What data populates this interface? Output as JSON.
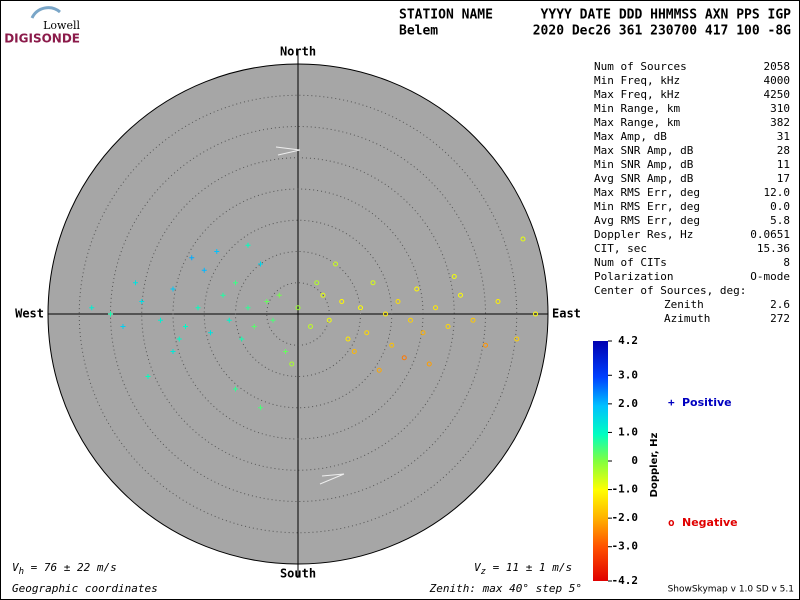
{
  "logo": {
    "top": "Lowell",
    "bottom": "DIGISONDE"
  },
  "header": {
    "labels": [
      "STATION NAME",
      "YYYY DATE  DDD HHMMSS AXN PPS IGP"
    ],
    "values": [
      "Belem",
      "2020 Dec26 361 230700 417 100 -8G"
    ]
  },
  "stats": [
    [
      "Num of Sources",
      "2058"
    ],
    [
      "Min Freq, kHz",
      "4000"
    ],
    [
      "Max Freq, kHz",
      "4250"
    ],
    [
      "Min Range, km",
      "310"
    ],
    [
      "Max Range, km",
      "382"
    ],
    [
      "Max Amp, dB",
      "31"
    ],
    [
      "Max SNR Amp, dB",
      "28"
    ],
    [
      "Min SNR Amp, dB",
      "11"
    ],
    [
      "Avg SNR Amp, dB",
      "17"
    ],
    [
      "Max RMS Err, deg",
      "12.0"
    ],
    [
      "Min RMS Err, deg",
      "0.0"
    ],
    [
      "Avg RMS Err, deg",
      "5.8"
    ],
    [
      "Doppler Res, Hz",
      "0.0651"
    ],
    [
      "CIT, sec",
      "15.36"
    ],
    [
      "Num of CITs",
      "8"
    ],
    [
      "Polarization",
      "O-mode"
    ]
  ],
  "center": {
    "label": "Center of Sources, deg:",
    "rows": [
      [
        "Zenith",
        "2.6"
      ],
      [
        "Azimuth",
        "272"
      ]
    ]
  },
  "footer": {
    "vh": {
      "symbol": "V",
      "sub": "h",
      "text": " = 76 ± 22 m/s"
    },
    "vz": {
      "symbol": "V",
      "sub": "z",
      "text": " = 11 ± 1 m/s"
    },
    "coords": "Geographic coordinates",
    "zenith": "Zenith: max 40°  step 5°",
    "version": "ShowSkymap v 1.0  SD v 5.1"
  },
  "chart_data": {
    "type": "scatter",
    "directions": {
      "north": "North",
      "south": "South",
      "west": "West",
      "east": "East"
    },
    "rlim": [
      0,
      40
    ],
    "rticks": [
      5,
      10,
      15,
      20,
      25,
      30,
      35
    ],
    "colorbar": {
      "label": "Doppler, Hz",
      "clim": [
        -4.2,
        4.2
      ],
      "ticks": [
        4.2,
        {
          "value": 3,
          "label": "3.0"
        },
        {
          "value": 2,
          "label": "2.0"
        },
        {
          "value": 1,
          "label": "1.0"
        },
        0,
        {
          "value": -1,
          "label": "-1.0"
        },
        {
          "value": -2,
          "label": "-2.0"
        },
        {
          "value": -3,
          "label": "-3.0"
        },
        -4.2
      ]
    },
    "series": [
      {
        "name": "Positive",
        "color": "#0000c0",
        "marker": "+",
        "x": [
          -30,
          -25,
          -22,
          -20,
          -18,
          -16,
          -15,
          -14,
          -12,
          -11,
          -10,
          -9,
          -8,
          -7,
          -6,
          -5,
          -4,
          -3,
          -20,
          -28,
          -24,
          -10,
          -13,
          -2,
          -26,
          -17,
          -19,
          -8,
          -33,
          -6
        ],
        "y": [
          0,
          2,
          -1,
          4,
          -2,
          1,
          7,
          -3,
          3,
          -1,
          5,
          -4,
          1,
          -2,
          8,
          2,
          -1,
          3,
          -6,
          -2,
          -10,
          -12,
          10,
          -6,
          5,
          9,
          -4,
          11,
          1,
          -15
        ],
        "doppler": [
          0.8,
          1.5,
          1.2,
          1.8,
          1.0,
          0.9,
          2.0,
          1.4,
          0.7,
          1.1,
          0.5,
          0.8,
          0.6,
          0.3,
          1.6,
          0.2,
          0.4,
          0.1,
          1.3,
          1.7,
          0.9,
          0.6,
          1.9,
          0.2,
          1.4,
          2.1,
          1.0,
          0.9,
          1.2,
          0.4
        ]
      },
      {
        "name": "Negative",
        "color": "#e00000",
        "marker": "o",
        "x": [
          0,
          2,
          4,
          5,
          7,
          8,
          10,
          11,
          12,
          14,
          15,
          16,
          18,
          19,
          20,
          22,
          24,
          26,
          28,
          30,
          32,
          35,
          38,
          36,
          6,
          -1,
          13,
          3,
          17,
          25,
          9,
          21
        ],
        "y": [
          1,
          -2,
          3,
          -1,
          2,
          -4,
          1,
          -3,
          5,
          0,
          -5,
          2,
          -1,
          4,
          -3,
          1,
          -2,
          3,
          -1,
          -5,
          2,
          -4,
          0,
          12,
          8,
          -8,
          -9,
          5,
          -7,
          6,
          -6,
          -8
        ],
        "doppler": [
          -0.2,
          -0.5,
          -0.8,
          -0.9,
          -1.1,
          -1.3,
          -1.0,
          -1.5,
          -0.7,
          -1.2,
          -1.8,
          -1.4,
          -1.6,
          -1.1,
          -2.0,
          -1.3,
          -1.5,
          -1.0,
          -1.7,
          -2.3,
          -1.2,
          -1.6,
          -1.0,
          -0.8,
          -0.6,
          -0.3,
          -2.1,
          -0.4,
          -2.6,
          -0.9,
          -1.9,
          -2.2
        ]
      }
    ]
  }
}
